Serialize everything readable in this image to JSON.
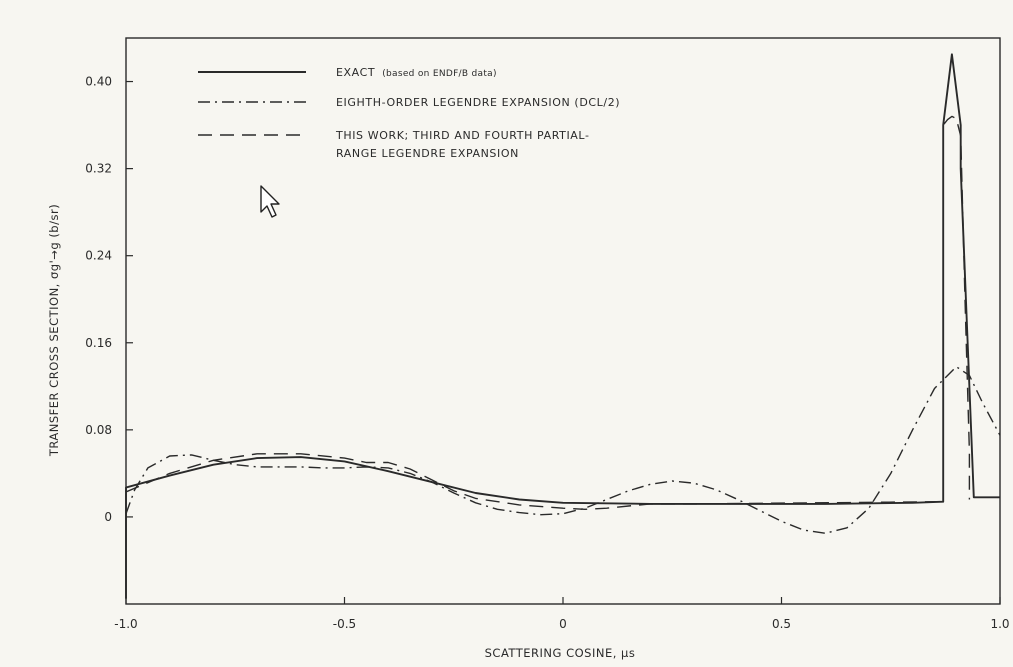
{
  "chart_data": {
    "type": "line",
    "xlabel": "SCATTERING COSINE, μs",
    "ylabel": "TRANSFER CROSS SECTION, σg'→g (b/sr)",
    "xlim": [
      -1.0,
      1.0
    ],
    "ylim": [
      -0.08,
      0.44
    ],
    "x_ticks": [
      "-1.0",
      "-0.5",
      "0",
      "0.5",
      "1.0"
    ],
    "y_ticks": [
      "0",
      "0.08",
      "0.16",
      "0.24",
      "0.32",
      "0.40"
    ],
    "legend_position": "top-left",
    "legend": [
      {
        "label": "EXACT",
        "suffix": "(based on ENDF/B data)",
        "style": "solid"
      },
      {
        "label": "EIGHTH-ORDER LEGENDRE EXPANSION (DCL/2)",
        "style": "dash-dot"
      },
      {
        "label": "THIS WORK; THIRD AND FOURTH PARTIAL-",
        "label2": "RANGE LEGENDRE EXPANSION",
        "style": "dashed"
      }
    ],
    "series": [
      {
        "name": "EXACT (based on ENDF/B data)",
        "style": "solid",
        "x": [
          -1.0,
          -1.0,
          -0.9,
          -0.8,
          -0.7,
          -0.6,
          -0.5,
          -0.4,
          -0.3,
          -0.2,
          -0.1,
          0.0,
          0.2,
          0.4,
          0.6,
          0.8,
          0.87,
          0.87,
          0.89,
          0.91,
          0.91,
          0.94,
          0.94,
          1.0
        ],
        "y": [
          -0.075,
          0.027,
          0.038,
          0.048,
          0.054,
          0.055,
          0.051,
          0.042,
          0.032,
          0.022,
          0.016,
          0.013,
          0.012,
          0.012,
          0.012,
          0.013,
          0.014,
          0.36,
          0.425,
          0.36,
          0.32,
          0.018,
          0.018,
          0.018
        ]
      },
      {
        "name": "EIGHTH-ORDER LEGENDRE EXPANSION (DCL/2)",
        "style": "dash-dot",
        "x": [
          -1.0,
          -0.98,
          -0.95,
          -0.9,
          -0.85,
          -0.8,
          -0.75,
          -0.7,
          -0.65,
          -0.6,
          -0.55,
          -0.5,
          -0.45,
          -0.4,
          -0.35,
          -0.3,
          -0.25,
          -0.2,
          -0.15,
          -0.1,
          -0.05,
          0.0,
          0.05,
          0.1,
          0.15,
          0.2,
          0.25,
          0.3,
          0.35,
          0.4,
          0.45,
          0.5,
          0.55,
          0.6,
          0.65,
          0.7,
          0.75,
          0.8,
          0.85,
          0.9,
          0.93,
          0.96,
          1.0
        ],
        "y": [
          0.003,
          0.025,
          0.045,
          0.056,
          0.057,
          0.052,
          0.048,
          0.046,
          0.046,
          0.046,
          0.045,
          0.045,
          0.046,
          0.045,
          0.04,
          0.032,
          0.022,
          0.013,
          0.007,
          0.004,
          0.002,
          0.003,
          0.008,
          0.016,
          0.024,
          0.03,
          0.033,
          0.031,
          0.025,
          0.016,
          0.006,
          -0.004,
          -0.012,
          -0.015,
          -0.01,
          0.008,
          0.04,
          0.08,
          0.118,
          0.138,
          0.13,
          0.105,
          0.075
        ]
      },
      {
        "name": "THIS WORK; THIRD AND FOURTH PARTIAL-RANGE LEGENDRE EXPANSION",
        "style": "dashed",
        "x": [
          -1.0,
          -0.9,
          -0.8,
          -0.7,
          -0.6,
          -0.5,
          -0.45,
          -0.4,
          -0.35,
          -0.3,
          -0.25,
          -0.2,
          -0.1,
          0.0,
          0.05,
          0.1,
          0.15,
          0.2,
          0.25,
          0.3,
          0.87,
          0.87,
          0.88,
          0.89,
          0.9,
          0.91,
          0.92,
          0.93,
          0.93
        ],
        "y": [
          0.023,
          0.04,
          0.052,
          0.058,
          0.058,
          0.054,
          0.05,
          0.05,
          0.044,
          0.034,
          0.024,
          0.017,
          0.011,
          0.008,
          0.007,
          0.008,
          0.01,
          0.012,
          0.012,
          0.012,
          0.014,
          0.36,
          0.365,
          0.368,
          0.366,
          0.35,
          0.2,
          0.06,
          0.016
        ]
      }
    ]
  }
}
